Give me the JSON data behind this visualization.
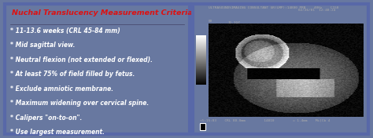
{
  "fig_width": 4.74,
  "fig_height": 1.76,
  "dpi": 100,
  "outer_bg": "#6878a0",
  "left_panel_bg": "#0d0d14",
  "left_border_color": "#5868a8",
  "right_panel_bg": "#080810",
  "right_border_color": "#5868a8",
  "title": "Nuchal Translucency Measurement Criteria",
  "title_color": "#dd1111",
  "title_fontsize": 6.8,
  "bullet_color": "#ffffff",
  "bullet_fontsize": 5.5,
  "bullets": [
    "* 11-13.6 weeks (CRL 45-84 mm)",
    "* Mid sagittal view.",
    "* Neutral flexion (not extended or flexed).",
    "* At least 75% of field filled by fetus.",
    "* Exclude amniotic membrane.",
    "* Maximum widening over cervical spine.",
    "* Calipers \"on-to-on\".",
    "* Use largest measurement."
  ],
  "header_line1": "ULTRASOUNDSIMAGING CONSULTANT GR(LMP):14800 PRB    40Hz    C150",
  "header_line2": "02/26/01  12:48:24",
  "footer_text": "+5:15:03    CRL 80.0mm         14810         = 1.4mm    Mi|Cb 4",
  "us_text_color": "#aaaaaa",
  "us_text_size": 3.2,
  "side_labels": "CHB\n7cm\nDR22\n0.12",
  "top_left_label": "00\n",
  "top_mid_label": "11.1GZ"
}
